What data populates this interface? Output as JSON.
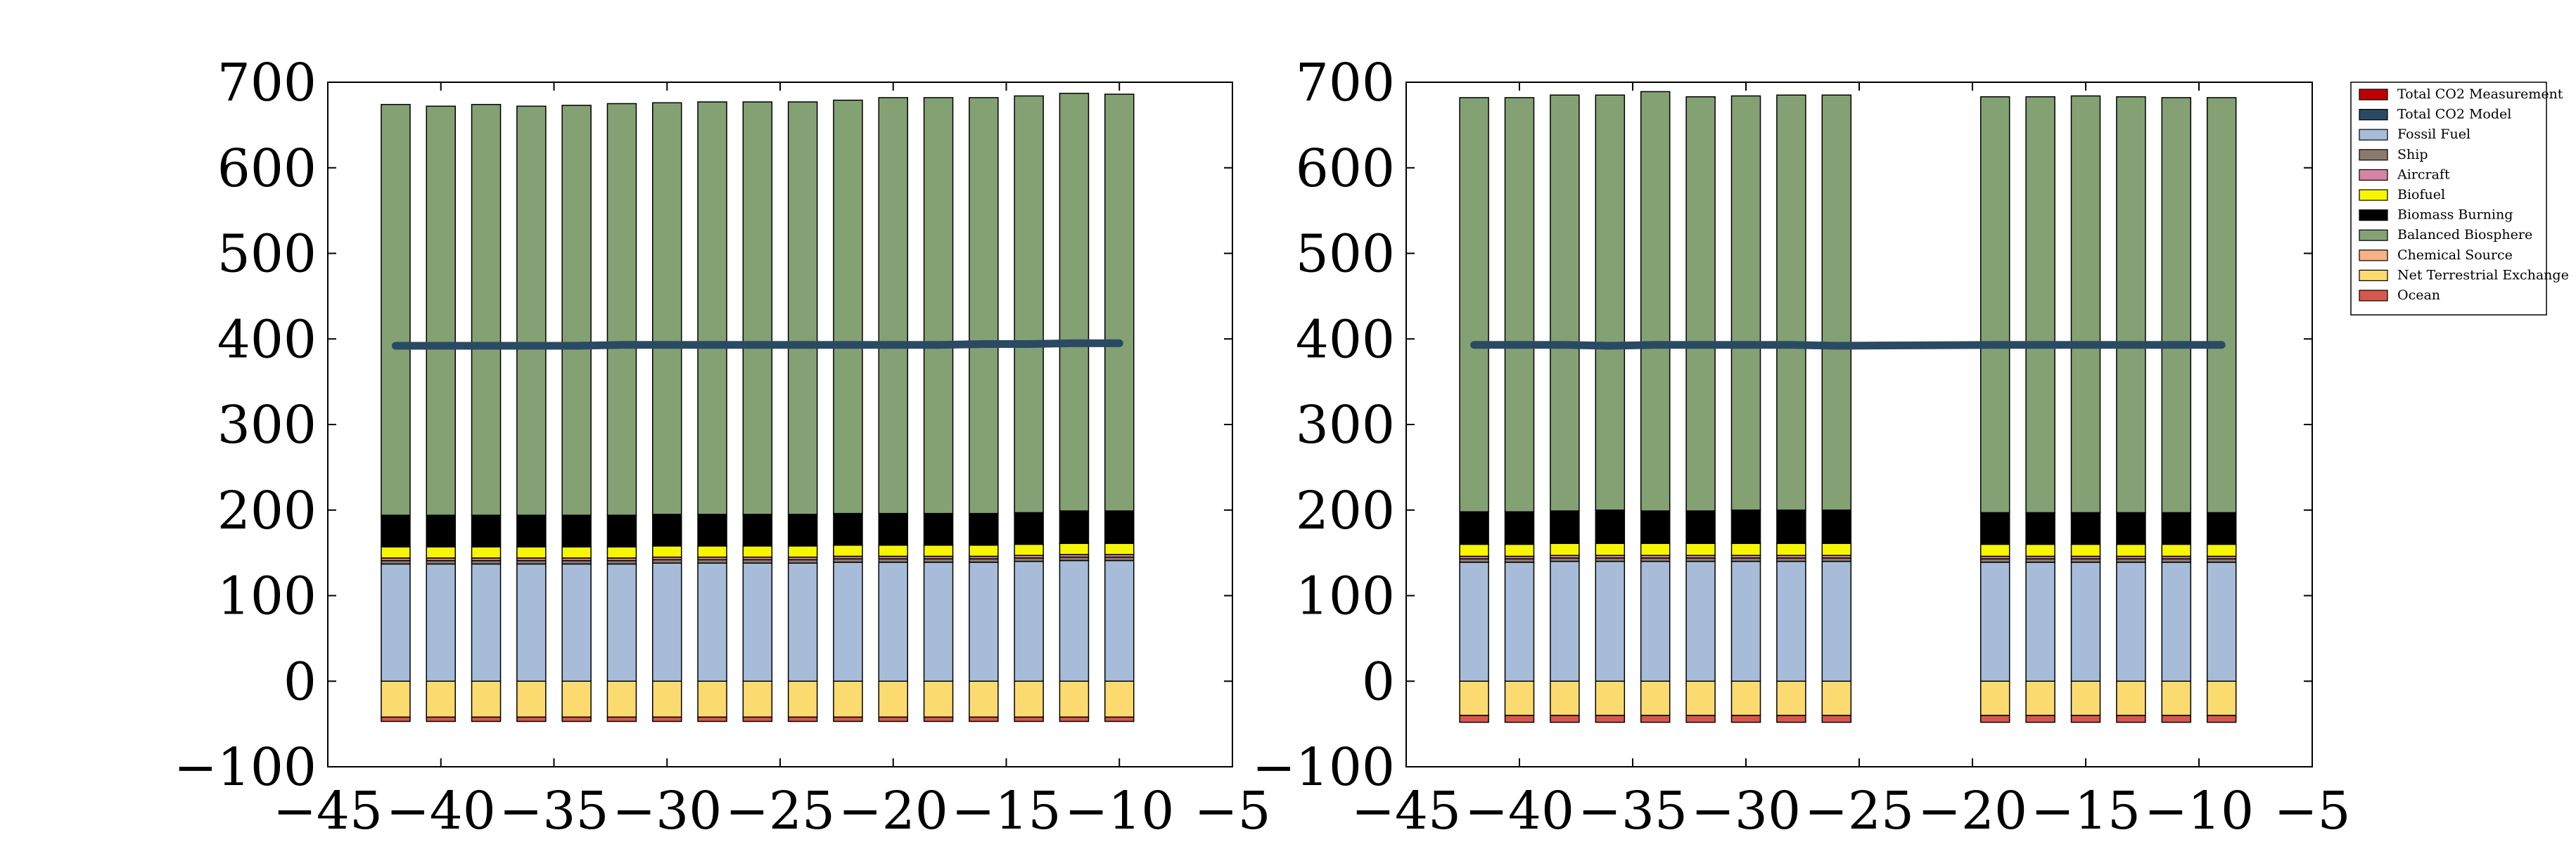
{
  "chart_data": [
    {
      "type": "bar",
      "title": "",
      "xlabel": "",
      "ylabel": "",
      "xlim": [
        -45,
        -5
      ],
      "ylim": [
        -100,
        700
      ],
      "xticks": [
        "−45",
        "−40",
        "−35",
        "−30",
        "−25",
        "−20",
        "−15",
        "−10",
        "−5"
      ],
      "yticks": [
        "−100",
        "0",
        "100",
        "200",
        "300",
        "400",
        "500",
        "600",
        "700"
      ],
      "x": [
        -42,
        -40,
        -38,
        -36,
        -34,
        -32,
        -30,
        -28,
        -26,
        -24,
        -22,
        -20,
        -18,
        -16,
        -14,
        -12,
        -10
      ],
      "series": [
        {
          "name": "Ocean",
          "values": [
            -5,
            -5,
            -5,
            -5,
            -5,
            -5,
            -5,
            -5,
            -5,
            -5,
            -5,
            -5,
            -5,
            -5,
            -5,
            -5,
            -5
          ]
        },
        {
          "name": "Net Terrestrial Exchange",
          "values": [
            -42,
            -42,
            -42,
            -42,
            -42,
            -42,
            -42,
            -42,
            -42,
            -42,
            -42,
            -42,
            -42,
            -42,
            -42,
            -42,
            -42
          ]
        },
        {
          "name": "Chemical Source",
          "values": [
            0,
            0,
            0,
            0,
            0,
            0,
            0,
            0,
            0,
            0,
            0,
            0,
            0,
            0,
            0,
            0,
            0
          ]
        },
        {
          "name": "Fossil Fuel",
          "values": [
            137,
            137,
            137,
            137,
            137,
            137,
            138,
            138,
            138,
            138,
            139,
            139,
            139,
            139,
            140,
            141,
            141
          ]
        },
        {
          "name": "Ship",
          "values": [
            4,
            4,
            4,
            4,
            4,
            4,
            4,
            4,
            4,
            4,
            4,
            4,
            4,
            4,
            4,
            4,
            4
          ]
        },
        {
          "name": "Aircraft",
          "values": [
            3,
            3,
            3,
            3,
            3,
            3,
            3,
            3,
            3,
            3,
            3,
            3,
            3,
            3,
            3,
            3,
            3
          ]
        },
        {
          "name": "Biofuel",
          "values": [
            13,
            13,
            13,
            13,
            13,
            13,
            13,
            13,
            13,
            13,
            13,
            13,
            13,
            13,
            13,
            13,
            13
          ]
        },
        {
          "name": "Biomass Burning",
          "values": [
            37,
            37,
            37,
            37,
            37,
            37,
            37,
            37,
            37,
            37,
            37,
            37,
            37,
            37,
            37,
            38,
            38
          ]
        },
        {
          "name": "Balanced Biosphere",
          "values": [
            480,
            478,
            480,
            478,
            479,
            481,
            481,
            482,
            482,
            482,
            483,
            486,
            486,
            486,
            487,
            488,
            487
          ]
        }
      ],
      "lines": [
        {
          "name": "Total CO2 Measurement",
          "x": [
            -42,
            -40,
            -38,
            -36,
            -34,
            -32,
            -30,
            -28,
            -26,
            -24,
            -22,
            -20,
            -18,
            -16,
            -14,
            -12,
            -10
          ],
          "values": [
            391,
            391,
            391,
            392,
            392,
            392,
            392,
            392,
            392,
            393,
            393,
            393,
            393,
            393,
            392,
            394,
            394
          ]
        },
        {
          "name": "Total CO2 Model",
          "x": [
            -42,
            -40,
            -38,
            -36,
            -34,
            -32,
            -30,
            -28,
            -26,
            -24,
            -22,
            -20,
            -18,
            -16,
            -14,
            -12,
            -10
          ],
          "values": [
            392,
            392,
            392,
            392,
            392,
            393,
            393,
            393,
            393,
            393,
            393,
            393,
            393,
            394,
            394,
            395,
            395
          ]
        }
      ]
    },
    {
      "type": "bar",
      "title": "",
      "xlabel": "",
      "ylabel": "",
      "xlim": [
        -45,
        -5
      ],
      "ylim": [
        -100,
        700
      ],
      "xticks": [
        "−45",
        "−40",
        "−35",
        "−30",
        "−25",
        "−20",
        "−15",
        "−10",
        "−5"
      ],
      "yticks": [
        "−100",
        "0",
        "100",
        "200",
        "300",
        "400",
        "500",
        "600",
        "700"
      ],
      "x": [
        -42,
        -40,
        -38,
        -36,
        -34,
        -32,
        -30,
        -28,
        -26,
        -19,
        -17,
        -15,
        -13,
        -11,
        -9
      ],
      "series": [
        {
          "name": "Ocean",
          "values": [
            -8,
            -8,
            -8,
            -8,
            -8,
            -8,
            -8,
            -8,
            -8,
            -8,
            -8,
            -8,
            -8,
            -8,
            -8
          ]
        },
        {
          "name": "Net Terrestrial Exchange",
          "values": [
            -40,
            -40,
            -40,
            -40,
            -40,
            -40,
            -40,
            -40,
            -40,
            -40,
            -40,
            -40,
            -40,
            -40,
            -40
          ]
        },
        {
          "name": "Chemical Source",
          "values": [
            0,
            0,
            0,
            0,
            0,
            0,
            0,
            0,
            0,
            0,
            0,
            0,
            0,
            0,
            0
          ]
        },
        {
          "name": "Fossil Fuel",
          "values": [
            139,
            139,
            140,
            140,
            140,
            140,
            140,
            140,
            140,
            139,
            139,
            139,
            139,
            139,
            139
          ]
        },
        {
          "name": "Ship",
          "values": [
            4,
            4,
            4,
            4,
            4,
            4,
            4,
            4,
            4,
            4,
            4,
            4,
            4,
            4,
            4
          ]
        },
        {
          "name": "Aircraft",
          "values": [
            3,
            3,
            3,
            3,
            3,
            3,
            3,
            3,
            3,
            3,
            3,
            3,
            3,
            3,
            3
          ]
        },
        {
          "name": "Biofuel",
          "values": [
            14,
            14,
            14,
            14,
            14,
            14,
            14,
            14,
            14,
            14,
            14,
            14,
            14,
            14,
            14
          ]
        },
        {
          "name": "Biomass Burning",
          "values": [
            38,
            38,
            38,
            39,
            38,
            38,
            39,
            39,
            39,
            37,
            37,
            37,
            37,
            37,
            37
          ]
        },
        {
          "name": "Balanced Biosphere",
          "values": [
            484,
            484,
            486,
            485,
            490,
            484,
            484,
            485,
            485,
            486,
            486,
            487,
            486,
            485,
            485
          ]
        }
      ],
      "lines": [
        {
          "name": "Total CO2 Measurement",
          "x": [
            -42,
            -40,
            -38,
            -36,
            -34,
            -32,
            -30,
            -28,
            -26,
            -19,
            -17,
            -15,
            -13,
            -11,
            -9
          ],
          "values": [
            393,
            394,
            394,
            390,
            391,
            392,
            394,
            394,
            390,
            392,
            392,
            393,
            393,
            393,
            393
          ]
        },
        {
          "name": "Total CO2 Model",
          "x": [
            -42,
            -40,
            -38,
            -36,
            -34,
            -32,
            -30,
            -28,
            -26,
            -19,
            -17,
            -15,
            -13,
            -11,
            -9
          ],
          "values": [
            393,
            393,
            393,
            392,
            393,
            393,
            393,
            393,
            392,
            393,
            393,
            393,
            393,
            393,
            393
          ]
        }
      ]
    }
  ],
  "legend": {
    "placement": "outside-right",
    "items": [
      {
        "label": "Total CO2 Measurement",
        "color": "#c00000"
      },
      {
        "label": "Total CO2 Model",
        "color": "#2a4a63"
      },
      {
        "label": "Fossil Fuel",
        "color": "#a7bcd8"
      },
      {
        "label": "Ship",
        "color": "#8c7b6d"
      },
      {
        "label": "Aircraft",
        "color": "#d585a3"
      },
      {
        "label": "Biofuel",
        "color": "#f6f600"
      },
      {
        "label": "Biomass Burning",
        "color": "#000000"
      },
      {
        "label": "Balanced Biosphere",
        "color": "#84a174"
      },
      {
        "label": "Chemical Source",
        "color": "#f6b185"
      },
      {
        "label": "Net Terrestrial Exchange",
        "color": "#fbdb70"
      },
      {
        "label": "Ocean",
        "color": "#d8574c"
      }
    ]
  },
  "colors": {
    "Fossil Fuel": "#a7bcd8",
    "Ship": "#8c7b6d",
    "Aircraft": "#d585a3",
    "Biofuel": "#f6f600",
    "Biomass Burning": "#000000",
    "Balanced Biosphere": "#84a174",
    "Chemical Source": "#f6b185",
    "Net Terrestrial Exchange": "#fbdb70",
    "Ocean": "#d8574c",
    "Total CO2 Measurement": "#c00000",
    "Total CO2 Model": "#2a4a63"
  }
}
